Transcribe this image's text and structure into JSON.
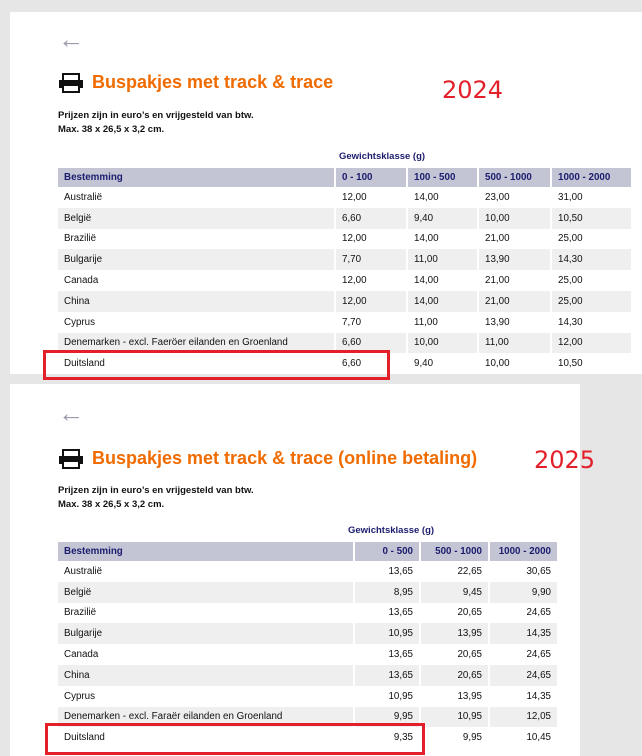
{
  "panel_2024": {
    "title": "Buspakjes met track & trace",
    "year": "2024",
    "note_line1": "Prijzen zijn in euro’s en vrijgesteld van btw.",
    "note_line2": "Max. 38 x 26,5 x 3,2 cm.",
    "weight_class": "Gewichtsklasse (g)",
    "headers": [
      "Bestemming",
      "0 - 100",
      "100 - 500",
      "500 - 1000",
      "1000 - 2000"
    ],
    "rows": [
      [
        "Australië",
        "12,00",
        "14,00",
        "23,00",
        "31,00"
      ],
      [
        "België",
        "6,60",
        "9,40",
        "10,00",
        "10,50"
      ],
      [
        "Brazilië",
        "12,00",
        "14,00",
        "21,00",
        "25,00"
      ],
      [
        "Bulgarije",
        "7,70",
        "11,00",
        "13,90",
        "14,30"
      ],
      [
        "Canada",
        "12,00",
        "14,00",
        "21,00",
        "25,00"
      ],
      [
        "China",
        "12,00",
        "14,00",
        "21,00",
        "25,00"
      ],
      [
        "Cyprus",
        "7,70",
        "11,00",
        "13,90",
        "14,30"
      ],
      [
        "Denemarken - excl. Faeröer eilanden en Groenland",
        "6,60",
        "10,00",
        "11,00",
        "12,00"
      ],
      [
        "Duitsland",
        "6,60",
        "9,40",
        "10,00",
        "10,50"
      ]
    ]
  },
  "panel_2025": {
    "title": "Buspakjes met track & trace (online betaling)",
    "year": "2025",
    "note_line1": "Prijzen zijn in euro’s en vrijgesteld van btw.",
    "note_line2": "Max. 38 x 26,5 x 3,2 cm.",
    "weight_class": "Gewichtsklasse (g)",
    "headers": [
      "Bestemming",
      "0 - 500",
      "500 - 1000",
      "1000 - 2000"
    ],
    "rows": [
      [
        "Australië",
        "13,65",
        "22,65",
        "30,65"
      ],
      [
        "België",
        "8,95",
        "9,45",
        "9,90"
      ],
      [
        "Brazilië",
        "13,65",
        "20,65",
        "24,65"
      ],
      [
        "Bulgarije",
        "10,95",
        "13,95",
        "14,35"
      ],
      [
        "Canada",
        "13,65",
        "20,65",
        "24,65"
      ],
      [
        "China",
        "13,65",
        "20,65",
        "24,65"
      ],
      [
        "Cyprus",
        "10,95",
        "13,95",
        "14,35"
      ],
      [
        "Denemarken - excl. Faraër eilanden en Groenland",
        "9,95",
        "10,95",
        "12,05"
      ],
      [
        "Duitsland",
        "9,35",
        "9,95",
        "10,45"
      ]
    ]
  },
  "icons": {
    "back": "arrow-left-icon",
    "title": "printer-icon"
  },
  "colors": {
    "title": "#f06b00",
    "year": "#e3202a",
    "highlight": "#e3202a",
    "header_bg": "#c3c5d4",
    "header_text": "#1c1c6e"
  }
}
